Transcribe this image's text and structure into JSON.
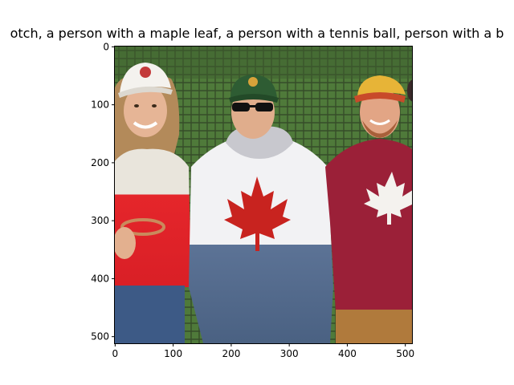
{
  "figure": {
    "title": "otch,  a person with a maple leaf, a person with a tennis ball, person with a b"
  },
  "axes": {
    "x_ticks": [
      "0",
      "100",
      "200",
      "300",
      "400",
      "500"
    ],
    "y_ticks": [
      "0",
      "100",
      "200",
      "300",
      "400",
      "500"
    ]
  },
  "image": {
    "description_icons": [
      "person-left-white-cap",
      "person-center-green-cap-sunglasses",
      "person-right-yellow-cap"
    ],
    "colors": {
      "background_green": "#4f7a3a",
      "fence_dark": "#2a3a22",
      "hoodie_white": "#f2f2f4",
      "hoodie_blue": "#5c7396",
      "maple_red": "#c8231f",
      "maroon_shirt": "#9b2038",
      "sweater_red": "#e5262b",
      "sweater_cream": "#e9e5dc",
      "skin": "#e3b08f"
    }
  }
}
